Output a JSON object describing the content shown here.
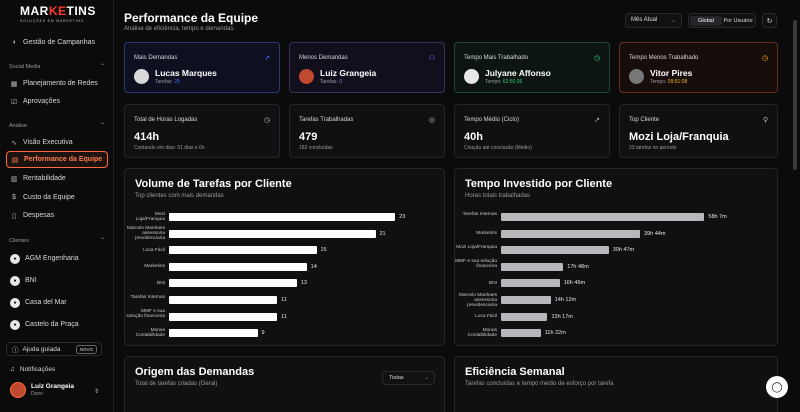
{
  "brand": {
    "name_a": "MAR",
    "name_b": "KE",
    "name_c": "TINS",
    "tagline": "SOLUÇÕES EM MARKETING"
  },
  "sidebar": {
    "top_item": "Gestão de Campanhas",
    "section_social": "Social Media",
    "social_items": [
      "Planejamento de Redes",
      "Aprovações"
    ],
    "section_analise": "Análise",
    "analise_items": [
      "Visão Executiva",
      "Performance da Equipe",
      "Rentabilidade",
      "Custo da Equipe",
      "Despesas"
    ],
    "section_clientes": "Clientes",
    "clientes": [
      "AGM Engenharia",
      "BNI",
      "Casa del Mar",
      "Castelo da Praça"
    ],
    "help_label": "Ajuda guiada",
    "help_badge": "NOVO",
    "notifications": "Notificações",
    "user_name": "Luiz Grangeia",
    "user_role": "Dono"
  },
  "header": {
    "title": "Performance da Equipe",
    "subtitle": "Análise de eficiência, tempo e demandas.",
    "period_value": "Mês Atual",
    "toggle_options": [
      "Global",
      "Por Usuário"
    ]
  },
  "top_cards": [
    {
      "label": "Mais Demandas",
      "name": "Lucas Marques",
      "meta_label": "Tarefas:",
      "meta_value": "25",
      "icon": "trend-up-icon",
      "accent": "#4a6cff"
    },
    {
      "label": "Menos Demandas",
      "name": "Luiz Grangeia",
      "meta_label": "Tarefas:",
      "meta_value": "0",
      "icon": "user-minus-icon",
      "accent": "#8c6cff"
    },
    {
      "label": "Tempo Mais Trabalhado",
      "name": "Julyane Affonso",
      "meta_label": "Tempo:",
      "meta_value": "62:50:26",
      "icon": "clock-icon",
      "accent": "#2fd07a"
    },
    {
      "label": "Tempo Menos Trabalhado",
      "name": "Vitor Pires",
      "meta_label": "Tempo:",
      "meta_value": "09:51:08",
      "icon": "clock-icon",
      "accent": "#ffb020"
    }
  ],
  "stat_cards": [
    {
      "label": "Total de Horas Logadas",
      "value": "414h",
      "detail": "Contando em dias: 51 dias e 6h",
      "icon": "clock-icon"
    },
    {
      "label": "Tarefas Trabalhadas",
      "value": "479",
      "detail": "182 concluídas",
      "icon": "check-circle-icon"
    },
    {
      "label": "Tempo Médio (Ciclo)",
      "value": "40h",
      "detail": "Criação até conclusão (Médio)",
      "icon": "trend-up-icon"
    },
    {
      "label": "Top Cliente",
      "value": "Mozi Loja/Franquia",
      "detail": "23 tarefas no período",
      "icon": "user-icon"
    }
  ],
  "chart_data": [
    {
      "type": "bar",
      "title": "Volume de Tarefas por Cliente",
      "subtitle": "Top clientes com mais demandas",
      "categories": [
        "Mozi Loja/Franquia",
        "Marcelo Manhaes assessoria previdenciaria",
        "Loca Fácil",
        "Marketins",
        "BNI",
        "Tarefas Internas",
        "MMF e sua solução financeira",
        "Morais Contabilidade"
      ],
      "values": [
        23,
        21,
        15,
        14,
        13,
        11,
        11,
        9
      ],
      "value_labels": [
        "23",
        "21",
        "15",
        "14",
        "13",
        "11",
        "11",
        "9"
      ],
      "xlim": [
        0,
        24
      ],
      "color": "#ffffff"
    },
    {
      "type": "bar",
      "title": "Tempo Investido por Cliente",
      "subtitle": "Horas totais trabalhadas",
      "categories": [
        "Tarefas Internas",
        "Marketins",
        "Mozi Loja/Franquia",
        "MMF e sua solução financeira",
        "BNI",
        "Marcelo Manhaes assessoria previdenciaria",
        "Loca Fácil",
        "Morais Contabilidade"
      ],
      "values": [
        58.12,
        39.73,
        30.78,
        17.8,
        16.77,
        14.2,
        13.28,
        11.37
      ],
      "value_labels": [
        "58h 7m",
        "39h 44m",
        "30h 47m",
        "17h 48m",
        "16h 46m",
        "14h 12m",
        "13h 17m",
        "11h 22m"
      ],
      "xlim": [
        0,
        60
      ],
      "color": "#b8b8bc"
    }
  ],
  "bottom_cards": [
    {
      "title": "Origem das Demandas",
      "subtitle": "Total de tarefas criadas (Geral)",
      "select_value": "Todas"
    },
    {
      "title": "Eficiência Semanal",
      "subtitle": "Tarefas concluídas e tempo médio de esforço por tarefa"
    }
  ]
}
